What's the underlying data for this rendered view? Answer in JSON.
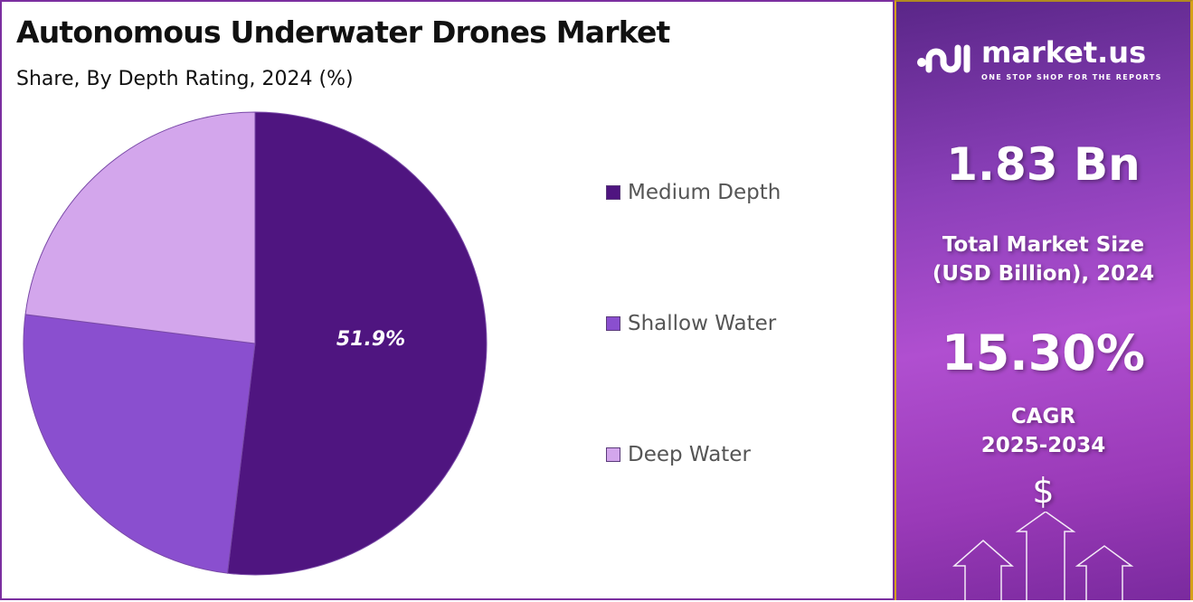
{
  "chart_data": {
    "type": "pie",
    "title": "Autonomous Underwater Drones Market",
    "subtitle": "Share, By Depth Rating, 2024 (%)",
    "slices": [
      {
        "label": "Medium Depth",
        "value": 51.9,
        "color": "#4f1580",
        "data_label": "51.9%"
      },
      {
        "label": "Shallow Water",
        "value": 25.1,
        "color": "#8a4fcf"
      },
      {
        "label": "Deep Water",
        "value": 23.0,
        "color": "#d3a6ec"
      }
    ],
    "start_angle": "12 o'clock, clockwise",
    "legend_placement": "right"
  },
  "side_panel": {
    "brand_name": "market.us",
    "brand_tagline": "ONE STOP SHOP FOR THE REPORTS",
    "market_size": "1.83 Bn",
    "market_size_label_line1": "Total Market Size",
    "market_size_label_line2": "(USD Billion), 2024",
    "cagr": "15.30%",
    "cagr_label_line1": "CAGR",
    "cagr_label_line2": "2025-2034",
    "currency_symbol": "$"
  }
}
